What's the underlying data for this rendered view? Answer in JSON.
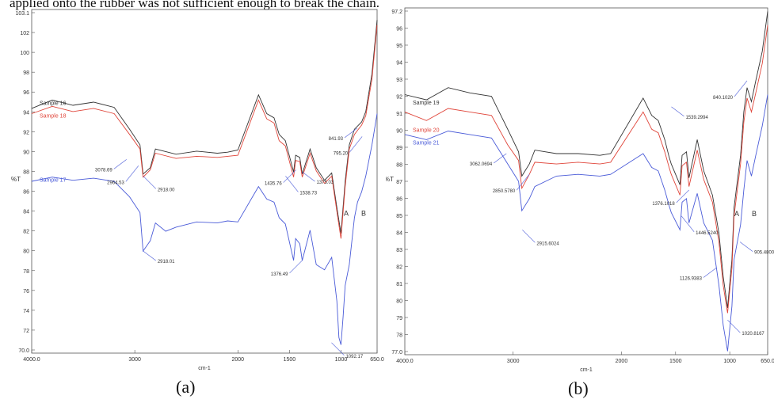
{
  "caption_top": "applied onto the rubber was not sufficient enough to break the chain.",
  "sublabels": {
    "a": "(a)",
    "b": "(b)"
  },
  "chart_data": [
    {
      "type": "line",
      "panel": "(a)",
      "xlabel": "cm-1",
      "ylabel": "%T",
      "xlim": [
        4000,
        650
      ],
      "ylim": [
        70,
        103
      ],
      "x_ticks": [
        "4000.0",
        "3000",
        "2000",
        "1500",
        "1000",
        "650.0"
      ],
      "y_ticks": [
        "103.1",
        "102",
        "100",
        "98",
        "96",
        "94",
        "92",
        "90",
        "88",
        "86",
        "84",
        "82",
        "80",
        "78",
        "76",
        "74",
        "72",
        "70.0"
      ],
      "colors": {
        "Sample 16": "#333333",
        "Sample 18": "#e0453a",
        "Sample 17": "#4a5bd8"
      },
      "legend_placement": "left",
      "series": [
        {
          "name": "Sample 16",
          "x": [
            4000,
            3800,
            3600,
            3400,
            3200,
            3050,
            2950,
            2920,
            2850,
            2800,
            2600,
            2400,
            2200,
            2100,
            2000,
            1800,
            1720,
            1650,
            1600,
            1540,
            1460,
            1440,
            1400,
            1376,
            1300,
            1240,
            1160,
            1090,
            1040,
            1000,
            960,
            920,
            870,
            840,
            800,
            760,
            700,
            650
          ],
          "y": [
            93.5,
            94.3,
            93.8,
            94.1,
            93.6,
            91.5,
            90.0,
            87.2,
            87.8,
            89.6,
            89.1,
            89.4,
            89.2,
            89.3,
            89.5,
            94.8,
            93.0,
            92.6,
            91.0,
            90.4,
            87.4,
            89.0,
            88.8,
            87.2,
            89.6,
            87.8,
            86.6,
            87.3,
            84.0,
            81.5,
            86.5,
            90.0,
            91.5,
            91.8,
            92.2,
            93.2,
            96.8,
            102.0
          ]
        },
        {
          "name": "Sample 18",
          "x": [
            4000,
            3800,
            3600,
            3400,
            3200,
            3050,
            2950,
            2920,
            2850,
            2800,
            2600,
            2400,
            2200,
            2100,
            2000,
            1800,
            1720,
            1650,
            1600,
            1540,
            1460,
            1440,
            1400,
            1376,
            1300,
            1240,
            1160,
            1090,
            1040,
            1000,
            960,
            920,
            870,
            840,
            800,
            760,
            700,
            650
          ],
          "y": [
            93.0,
            93.7,
            93.2,
            93.5,
            93.0,
            91.0,
            89.6,
            86.9,
            87.6,
            89.2,
            88.7,
            88.9,
            88.8,
            88.9,
            89.0,
            94.3,
            92.5,
            92.1,
            90.4,
            89.9,
            86.9,
            88.5,
            88.4,
            86.9,
            89.2,
            87.5,
            86.3,
            87.0,
            83.6,
            81.0,
            86.0,
            89.6,
            91.0,
            91.4,
            91.9,
            92.8,
            96.3,
            101.5
          ]
        },
        {
          "name": "Sample 17",
          "x": [
            4000,
            3800,
            3600,
            3400,
            3200,
            3050,
            2950,
            2920,
            2850,
            2800,
            2700,
            2600,
            2400,
            2200,
            2100,
            2000,
            1800,
            1720,
            1650,
            1600,
            1540,
            1460,
            1440,
            1400,
            1376,
            1300,
            1240,
            1160,
            1090,
            1040,
            1020,
            1000,
            980,
            960,
            920,
            870,
            840,
            800,
            760,
            700,
            650
          ],
          "y": [
            86.5,
            86.9,
            86.6,
            86.8,
            86.5,
            85.0,
            83.5,
            79.8,
            80.8,
            82.5,
            81.7,
            82.1,
            82.6,
            82.5,
            82.7,
            82.6,
            86.0,
            84.8,
            84.5,
            83.0,
            82.4,
            78.9,
            81.0,
            80.5,
            78.9,
            81.8,
            78.5,
            78.0,
            79.2,
            75.0,
            71.5,
            70.8,
            73.5,
            76.5,
            78.5,
            83.0,
            84.5,
            85.5,
            87.0,
            90.0,
            93.0
          ]
        }
      ],
      "annotations": [
        {
          "text": "3078.69",
          "x": 3080,
          "y": 88.6
        },
        {
          "text": "2918.00",
          "x": 2918,
          "y": 87.0
        },
        {
          "text": "2964.53",
          "x": 2964,
          "y": 88.0
        },
        {
          "text": "1375.03",
          "x": 1376,
          "y": 87.4
        },
        {
          "text": "1435.76",
          "x": 1436,
          "y": 87.6
        },
        {
          "text": "1538.73",
          "x": 1538,
          "y": 87.0
        },
        {
          "text": "841.93",
          "x": 842,
          "y": 91.6
        },
        {
          "text": "1092.17",
          "x": 1092,
          "y": 71.0
        },
        {
          "text": "795.20",
          "x": 795,
          "y": 90.8
        },
        {
          "text": "2918.01",
          "x": 2918,
          "y": 79.8
        },
        {
          "text": "1376.49",
          "x": 1376,
          "y": 78.9
        }
      ],
      "region_labels": [
        "A",
        "B"
      ]
    },
    {
      "type": "line",
      "panel": "(b)",
      "xlabel": "cm-1",
      "ylabel": "%T",
      "xlim": [
        4000,
        650
      ],
      "ylim": [
        77,
        97
      ],
      "x_ticks": [
        "4000.0",
        "3000",
        "2000",
        "1500",
        "1000",
        "650.0"
      ],
      "y_ticks": [
        "97.2",
        "96",
        "95",
        "94",
        "93",
        "92",
        "91",
        "90",
        "89",
        "88",
        "87",
        "86",
        "85",
        "84",
        "83",
        "82",
        "81",
        "80",
        "79",
        "78",
        "77.0"
      ],
      "colors": {
        "Sample 19": "#333333",
        "Sample 20": "#e0453a",
        "Sample 21": "#4a5bd8"
      },
      "legend_placement": "left",
      "series": [
        {
          "name": "Sample 19",
          "x": [
            4000,
            3800,
            3600,
            3400,
            3200,
            3050,
            2950,
            2920,
            2850,
            2800,
            2600,
            2400,
            2200,
            2100,
            1800,
            1720,
            1660,
            1600,
            1560,
            1540,
            1460,
            1440,
            1400,
            1376,
            1300,
            1240,
            1160,
            1100,
            1060,
            1020,
            980,
            960,
            900,
            870,
            840,
            800,
            760,
            700,
            650
          ],
          "y": [
            92.0,
            91.7,
            92.4,
            92.1,
            91.9,
            90.0,
            88.7,
            87.3,
            88.0,
            88.8,
            88.6,
            88.6,
            88.5,
            88.6,
            91.8,
            90.8,
            90.5,
            89.4,
            88.4,
            88.0,
            86.8,
            88.5,
            88.7,
            87.2,
            89.4,
            87.6,
            86.2,
            84.0,
            81.5,
            79.7,
            82.5,
            85.5,
            88.5,
            91.0,
            92.4,
            91.6,
            92.8,
            94.5,
            96.8
          ]
        },
        {
          "name": "Sample 20",
          "x": [
            4000,
            3800,
            3600,
            3400,
            3200,
            3050,
            2950,
            2920,
            2850,
            2800,
            2600,
            2400,
            2200,
            2100,
            1800,
            1720,
            1660,
            1600,
            1560,
            1540,
            1460,
            1440,
            1400,
            1376,
            1300,
            1240,
            1160,
            1100,
            1060,
            1020,
            980,
            960,
            900,
            870,
            840,
            800,
            760,
            700,
            650
          ],
          "y": [
            91.0,
            90.5,
            91.2,
            91.0,
            90.8,
            89.1,
            88.2,
            86.6,
            87.4,
            88.1,
            88.0,
            88.1,
            88.0,
            88.1,
            91.0,
            90.0,
            89.8,
            88.7,
            87.8,
            87.4,
            86.2,
            87.9,
            88.1,
            86.7,
            88.8,
            87.1,
            85.8,
            83.5,
            81.0,
            79.4,
            82.0,
            85.0,
            88.0,
            90.4,
            91.8,
            91.0,
            92.1,
            93.8,
            96.0
          ]
        },
        {
          "name": "Sample 21",
          "x": [
            4000,
            3800,
            3600,
            3400,
            3200,
            3050,
            2950,
            2920,
            2850,
            2800,
            2600,
            2400,
            2200,
            2100,
            1800,
            1720,
            1660,
            1600,
            1560,
            1540,
            1460,
            1440,
            1400,
            1376,
            1300,
            1240,
            1160,
            1100,
            1060,
            1020,
            980,
            960,
            900,
            870,
            840,
            800,
            760,
            700,
            650
          ],
          "y": [
            89.7,
            89.4,
            89.9,
            89.7,
            89.5,
            88.0,
            87.0,
            85.3,
            86.0,
            86.7,
            87.3,
            87.4,
            87.3,
            87.4,
            88.6,
            87.8,
            87.6,
            86.5,
            85.6,
            85.2,
            84.2,
            85.8,
            86.0,
            84.6,
            86.3,
            84.6,
            83.6,
            81.0,
            78.7,
            77.2,
            79.8,
            82.5,
            84.5,
            86.5,
            88.2,
            87.3,
            88.5,
            90.2,
            92.0
          ]
        }
      ],
      "annotations": [
        {
          "text": "3062.0694",
          "x": 3062,
          "y": 88.6
        },
        {
          "text": "2915.6024",
          "x": 2915,
          "y": 84.2
        },
        {
          "text": "2850.5780",
          "x": 2850,
          "y": 87.4
        },
        {
          "text": "1539.2994",
          "x": 1539,
          "y": 91.3
        },
        {
          "text": "1376.1018",
          "x": 1376,
          "y": 86.5
        },
        {
          "text": "1446.5240",
          "x": 1446,
          "y": 85.0
        },
        {
          "text": "1126.9383",
          "x": 1126,
          "y": 82.0
        },
        {
          "text": "1020.8167",
          "x": 1020,
          "y": 79.0
        },
        {
          "text": "840.1020",
          "x": 840,
          "y": 92.8
        },
        {
          "text": "905.4800",
          "x": 905,
          "y": 83.5
        }
      ],
      "region_labels": [
        "A",
        "B"
      ]
    }
  ]
}
